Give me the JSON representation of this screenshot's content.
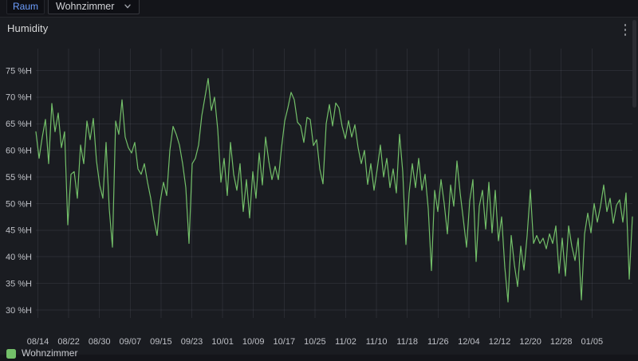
{
  "topbar": {
    "variable_label": "Raum",
    "variable_value": "Wohnzimmer"
  },
  "panel": {
    "title": "Humidity",
    "legend_label": "Wohnzimmer"
  },
  "icons": {
    "chevron_down": "chevron-down",
    "kebab_menu": "vertical-ellipsis",
    "legend_swatch": "green-rounded-square"
  },
  "colors": {
    "series_green": "#73bf69",
    "variable_label_blue": "#6e9fff",
    "panel_background": "#1a1c21",
    "topbar_background": "#14151a",
    "axis_text": "#bfc1c7",
    "grid_line": "rgba(204,204,220,0.09)",
    "title_text": "#d8d9da"
  },
  "chart_data": {
    "type": "line",
    "title": "Humidity",
    "xlabel": "",
    "ylabel": "",
    "y_unit": "%H",
    "ylim": [
      30,
      75
    ],
    "grid": true,
    "legend_position": "bottom-left",
    "x_tick_labels": [
      "08/14",
      "08/22",
      "08/30",
      "09/07",
      "09/15",
      "09/23",
      "10/01",
      "10/09",
      "10/17",
      "10/25",
      "11/02",
      "11/10",
      "11/18",
      "11/26",
      "12/04",
      "12/12",
      "12/20",
      "12/28",
      "01/05"
    ],
    "y_tick_values": [
      75,
      70,
      65,
      60,
      55,
      50,
      45,
      40,
      35,
      30
    ],
    "y_tick_labels": [
      "75 %H",
      "70 %H",
      "65 %H",
      "60 %H",
      "55 %H",
      "50 %H",
      "45 %H",
      "40 %H",
      "35 %H",
      "30 %H"
    ],
    "series": [
      {
        "name": "Wohnzimmer",
        "color": "#73bf69",
        "values": [
          63.5,
          58.5,
          62.5,
          65.8,
          57.5,
          68.8,
          63.5,
          67,
          60.5,
          63.5,
          46,
          55.5,
          56,
          51,
          61,
          57.5,
          65.5,
          62,
          66,
          58,
          53.5,
          51,
          61.5,
          49,
          41.8,
          65.5,
          63,
          69.5,
          62.5,
          60.5,
          59.5,
          61.5,
          56.5,
          55.5,
          57.5,
          54,
          51,
          47,
          44,
          50.5,
          54,
          51.5,
          60,
          64.5,
          63,
          61,
          57.5,
          53,
          42.5,
          57.5,
          58.5,
          61,
          66.5,
          70,
          73.5,
          67.5,
          70,
          64,
          54,
          58.5,
          51.5,
          61.5,
          55.5,
          52.5,
          57.5,
          48.5,
          54.5,
          47.3,
          56,
          51,
          59.5,
          53.5,
          62.5,
          58,
          54.5,
          57,
          54.5,
          60.5,
          65.5,
          68,
          70.9,
          69.5,
          65.3,
          64.6,
          61.5,
          66.2,
          65.8,
          60.9,
          62,
          56.5,
          53.7,
          65,
          68.6,
          64.6,
          68.9,
          68,
          64.5,
          62.2,
          65.6,
          62.5,
          64.8,
          60.5,
          57.5,
          60,
          53.6,
          57.5,
          52.5,
          56.5,
          61,
          55,
          58.5,
          53,
          56.5,
          52,
          63,
          56,
          42.3,
          52,
          57.5,
          53,
          58.5,
          52.5,
          55.5,
          49,
          37.4,
          52.5,
          48.5,
          54.5,
          50,
          44.3,
          53.5,
          49.5,
          58,
          52,
          47,
          41.8,
          50.5,
          54.5,
          39.1,
          49.5,
          52.5,
          45.2,
          54,
          44.5,
          52.5,
          43,
          47.5,
          38,
          31.5,
          44,
          38.5,
          34.4,
          42,
          37.5,
          44,
          52.6,
          42.5,
          44,
          42.5,
          43.5,
          41.5,
          44.3,
          42.5,
          45.8,
          36.9,
          43.5,
          36.4,
          45.8,
          42,
          39.3,
          43.5,
          31.9,
          44.3,
          48.2,
          44.5,
          50,
          46.5,
          49.5,
          53.5,
          48.5,
          51,
          46.3,
          49.7,
          50.7,
          46.5,
          52,
          35.8,
          47.5
        ]
      }
    ]
  }
}
